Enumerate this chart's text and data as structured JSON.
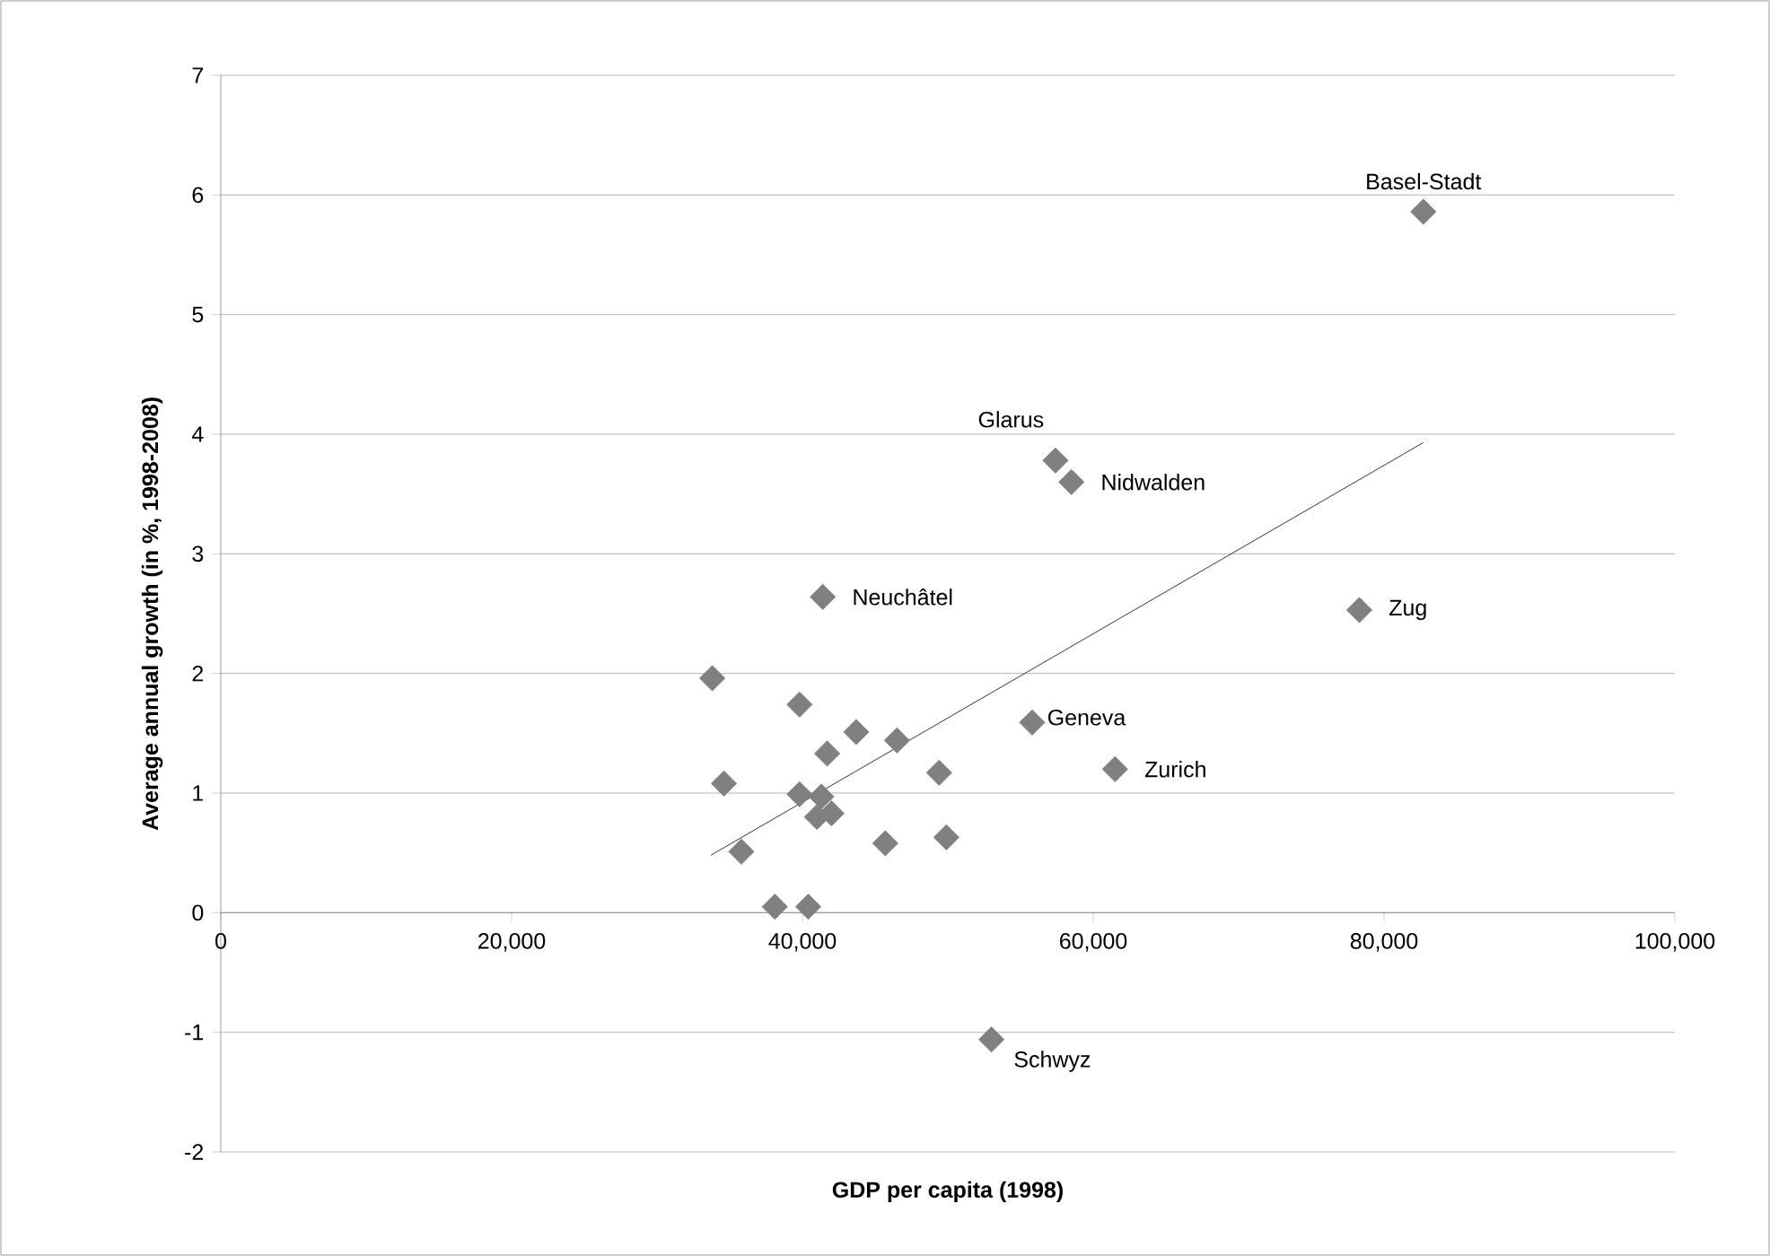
{
  "chart_data": {
    "type": "scatter",
    "xlabel": "GDP per capita (1998)",
    "ylabel": "Average annual growth (in %, 1998-2008)",
    "xlim": [
      0,
      100000
    ],
    "ylim": [
      -2,
      7
    ],
    "xticks": [
      0,
      {
        "value": 20000,
        "label": "20,000"
      },
      {
        "value": 40000,
        "label": "40,000"
      },
      {
        "value": 60000,
        "label": "60,000"
      },
      {
        "value": 80000,
        "label": "80,000"
      },
      {
        "value": 100000,
        "label": "100,000"
      }
    ],
    "yticks": [
      -2,
      -1,
      0,
      1,
      2,
      3,
      4,
      5,
      6,
      7
    ],
    "grid": "y",
    "marker": "diamond",
    "series": [
      {
        "color": "#808080",
        "x": [
          33800,
          39800,
          43700,
          41700,
          46500,
          49400,
          34600,
          39800,
          40600,
          41300,
          42000,
          41000,
          35800,
          45700,
          49900,
          38100,
          40400,
          53000,
          57400,
          58500,
          78300,
          55800,
          61500,
          41400,
          82700
        ],
        "values": [
          1.96,
          1.74,
          1.51,
          1.33,
          1.44,
          1.17,
          1.08,
          0.99,
          null,
          0.97,
          0.83,
          0.8,
          0.51,
          0.58,
          0.63,
          0.05,
          0.05,
          -1.06,
          3.78,
          3.6,
          2.53,
          1.59,
          1.2,
          2.64,
          5.86
        ]
      },
      {
        "type": "line",
        "color": "#000000",
        "marker": "none",
        "line_style": "solid",
        "x": [
          33700,
          82700
        ],
        "values": [
          0.48,
          3.93
        ]
      }
    ],
    "annotations": [
      {
        "text": "Basel-Stadt",
        "x": 82700,
        "y": 5.86
      },
      {
        "text": "Glarus",
        "x": 57400,
        "y": 3.78
      },
      {
        "text": "Nidwalden",
        "x": 58500,
        "y": 3.6
      },
      {
        "text": "Neuchâtel",
        "x": 41400,
        "y": 2.64
      },
      {
        "text": "Zug",
        "x": 78300,
        "y": 2.53
      },
      {
        "text": "Geneva",
        "x": 55800,
        "y": 1.59
      },
      {
        "text": "Zurich",
        "x": 61500,
        "y": 1.2
      },
      {
        "text": "Schwyz",
        "x": 53000,
        "y": -1.06
      }
    ]
  }
}
